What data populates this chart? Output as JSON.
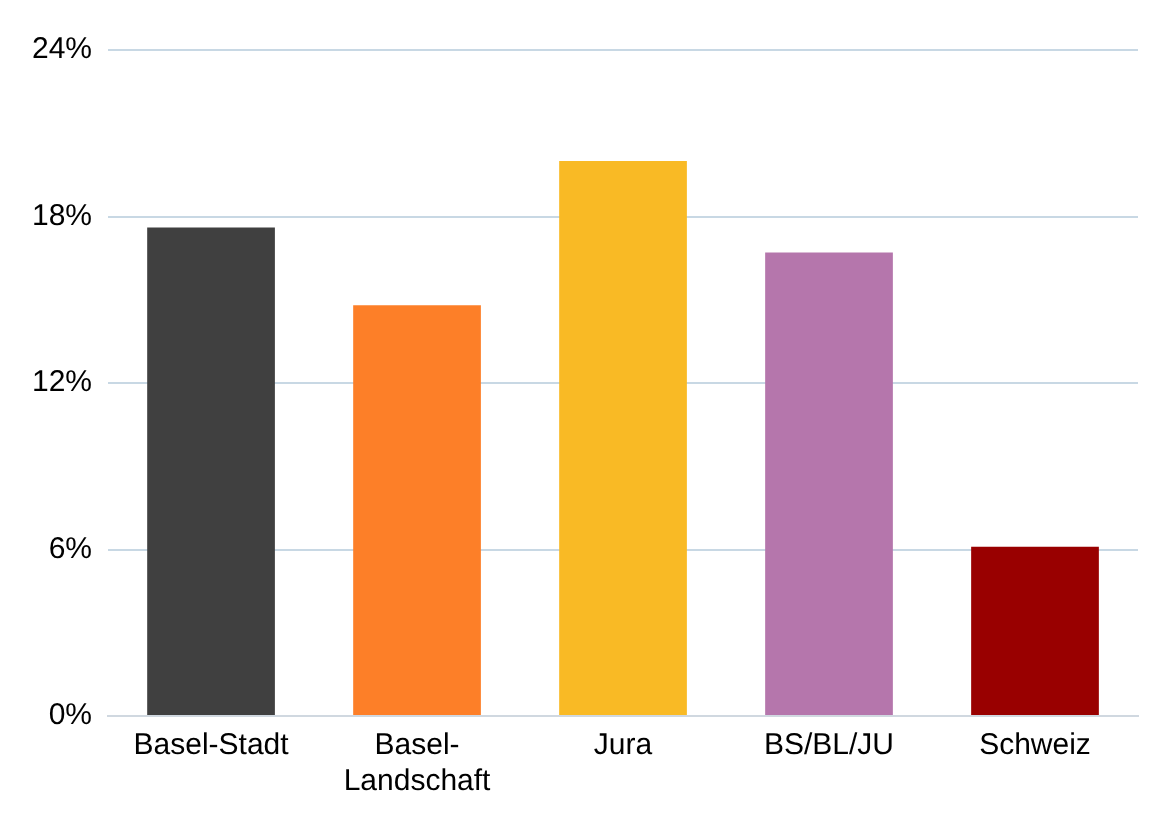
{
  "chart_data": {
    "type": "bar",
    "categories": [
      "Basel-Stadt",
      "Basel-Landschaft",
      "Jura",
      "BS/BL/JU",
      "Schweiz"
    ],
    "values": [
      17.6,
      14.8,
      20.0,
      16.7,
      6.1
    ],
    "colors": [
      "#404040",
      "#fd7f28",
      "#f9ba25",
      "#b576ac",
      "#990000"
    ],
    "ylim": [
      0,
      24
    ],
    "yticks": [
      {
        "value": 0,
        "label": "0%"
      },
      {
        "value": 6,
        "label": "6%"
      },
      {
        "value": 12,
        "label": "12%"
      },
      {
        "value": 18,
        "label": "18%"
      },
      {
        "value": 24,
        "label": "24%"
      }
    ],
    "grid": "y",
    "legend": false
  }
}
